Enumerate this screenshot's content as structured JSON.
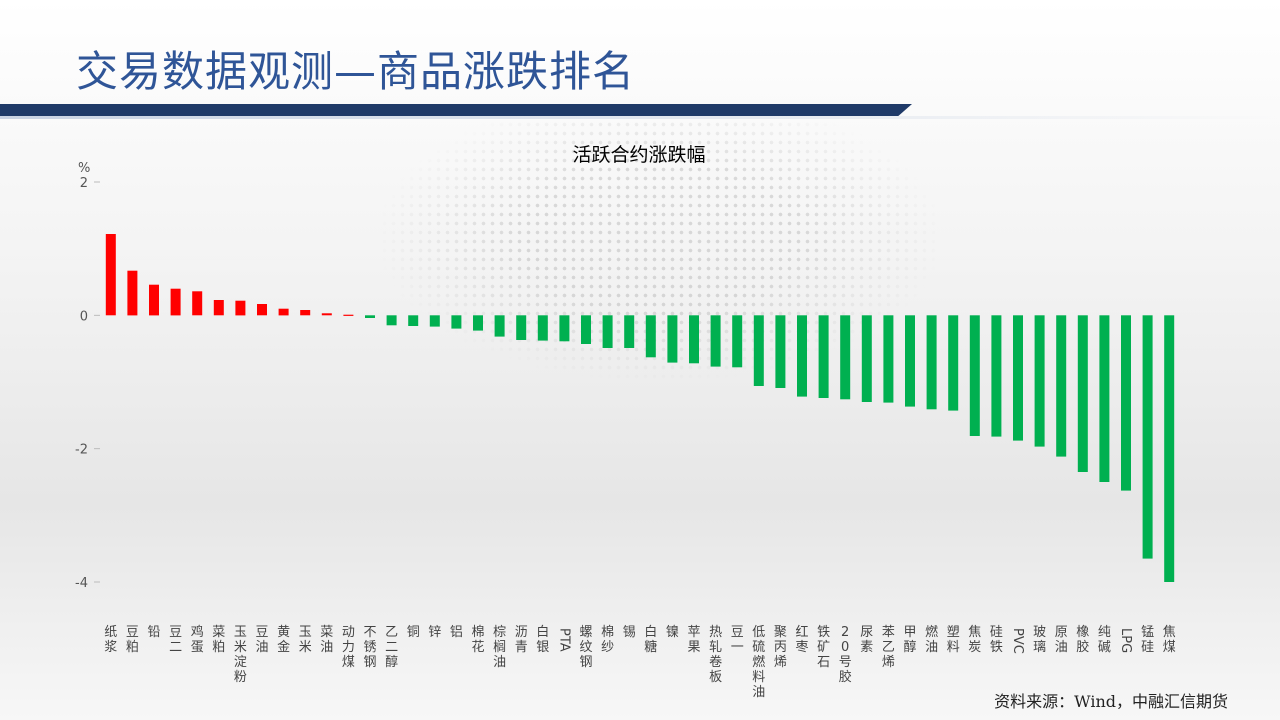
{
  "slide": {
    "title": "交易数据观测—商品涨跌排名",
    "source": "资料来源：Wind，中融汇信期货"
  },
  "colors": {
    "title_text": "#2f5597",
    "title_bar": "#1f3a68",
    "up_bar": "#ff0000",
    "down_bar": "#00b050"
  },
  "chart_data": {
    "type": "bar",
    "title": "活跃合约涨跌幅",
    "ylabel": "%",
    "ylim": [
      -4,
      2
    ],
    "yticks": [
      2,
      0,
      -2,
      -4
    ],
    "grid": false,
    "categories": [
      "纸浆",
      "豆粕",
      "铅",
      "豆二",
      "鸡蛋",
      "菜粕",
      "玉米淀粉",
      "豆油",
      "黄金",
      "玉米",
      "菜油",
      "动力煤",
      "不锈钢",
      "乙二醇",
      "铜",
      "锌",
      "铝",
      "棉花",
      "棕榈油",
      "沥青",
      "白银",
      "PTA",
      "螺纹钢",
      "棉纱",
      "锡",
      "白糖",
      "镍",
      "苹果",
      "热轧卷板",
      "豆一",
      "低硫燃料油",
      "聚丙烯",
      "红枣",
      "铁矿石",
      "20号胶",
      "尿素",
      "苯乙烯",
      "甲醇",
      "燃油",
      "塑料",
      "焦炭",
      "硅铁",
      "PVC",
      "玻璃",
      "原油",
      "橡胶",
      "纯碱",
      "LPG",
      "锰硅",
      "焦煤"
    ],
    "values": [
      1.22,
      0.67,
      0.46,
      0.4,
      0.36,
      0.23,
      0.22,
      0.17,
      0.1,
      0.08,
      0.03,
      0.0,
      -0.04,
      -0.15,
      -0.16,
      -0.17,
      -0.2,
      -0.23,
      -0.32,
      -0.37,
      -0.38,
      -0.39,
      -0.43,
      -0.49,
      -0.49,
      -0.63,
      -0.71,
      -0.72,
      -0.77,
      -0.78,
      -1.06,
      -1.09,
      -1.22,
      -1.24,
      -1.26,
      -1.3,
      -1.31,
      -1.37,
      -1.41,
      -1.43,
      -1.81,
      -1.82,
      -1.88,
      -1.97,
      -2.12,
      -2.35,
      -2.5,
      -2.63,
      -3.65,
      -4.0
    ]
  }
}
